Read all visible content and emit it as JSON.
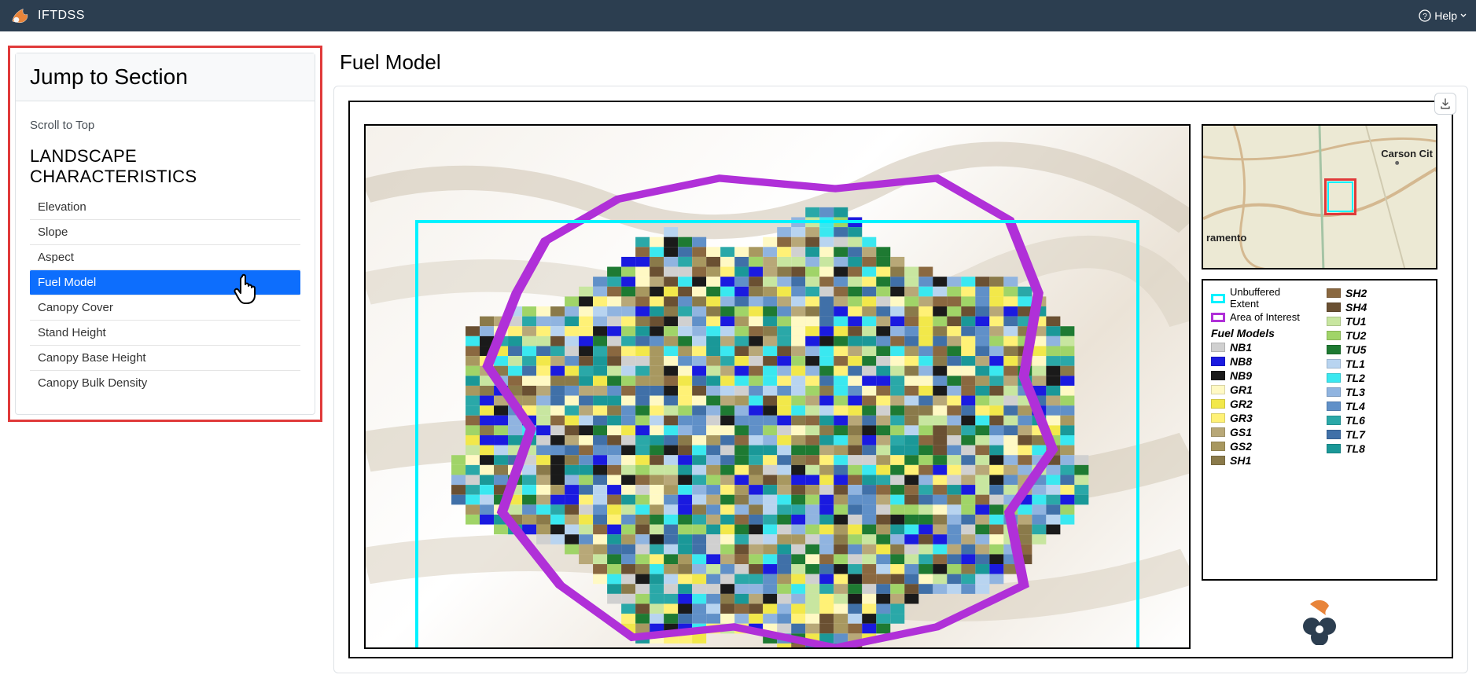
{
  "header": {
    "app_name": "IFTDSS",
    "help_label": "Help"
  },
  "sidebar": {
    "title": "Jump to Section",
    "scroll_top": "Scroll to Top",
    "section_heading": "LANDSCAPE CHARACTERISTICS",
    "items": [
      {
        "label": "Elevation",
        "active": false
      },
      {
        "label": "Slope",
        "active": false
      },
      {
        "label": "Aspect",
        "active": false
      },
      {
        "label": "Fuel Model",
        "active": true
      },
      {
        "label": "Canopy Cover",
        "active": false
      },
      {
        "label": "Stand Height",
        "active": false
      },
      {
        "label": "Canopy Base Height",
        "active": false
      },
      {
        "label": "Canopy Bulk Density",
        "active": false
      }
    ],
    "highlight_color": "#0d6efd",
    "border_color": "#e03a3a"
  },
  "content": {
    "title": "Fuel Model",
    "download_tooltip": "Download"
  },
  "minimap": {
    "labels": {
      "carson_city": "Carson Cit",
      "sacramento": "ramento"
    }
  },
  "legend": {
    "unbuffered": {
      "label_l1": "Unbuffered",
      "label_l2": "Extent",
      "color": "#00f2ff"
    },
    "aoi": {
      "label": "Area of Interest",
      "color": "#b030d8"
    },
    "section_label": "Fuel Models",
    "items_col1": [
      {
        "code": "NB1",
        "color": "#d0d0d0"
      },
      {
        "code": "NB8",
        "color": "#1a1ae0"
      },
      {
        "code": "NB9",
        "color": "#1a1a1a"
      },
      {
        "code": "GR1",
        "color": "#fff9c4"
      },
      {
        "code": "GR2",
        "color": "#f2e84a"
      },
      {
        "code": "GR3",
        "color": "#fff176"
      },
      {
        "code": "GS1",
        "color": "#b8a878"
      },
      {
        "code": "GS2",
        "color": "#a89860"
      },
      {
        "code": "SH1",
        "color": "#8a7a4a"
      }
    ],
    "items_col2": [
      {
        "code": "SH2",
        "color": "#8a6840"
      },
      {
        "code": "SH4",
        "color": "#6a5032"
      },
      {
        "code": "TU1",
        "color": "#c8e6a0"
      },
      {
        "code": "TU2",
        "color": "#a0d468"
      },
      {
        "code": "TU5",
        "color": "#1e7a32"
      },
      {
        "code": "TL1",
        "color": "#b8d4f0"
      },
      {
        "code": "TL2",
        "color": "#3ae8f0"
      },
      {
        "code": "TL3",
        "color": "#90b4e0"
      },
      {
        "code": "TL4",
        "color": "#6090c8"
      },
      {
        "code": "TL6",
        "color": "#2aa8a8"
      },
      {
        "code": "TL7",
        "color": "#4070a8"
      },
      {
        "code": "TL8",
        "color": "#1a9898"
      }
    ]
  },
  "colors": {
    "topbar_bg": "#2c3e50",
    "accent": "#0d6efd",
    "highlight_border": "#e03a3a"
  }
}
